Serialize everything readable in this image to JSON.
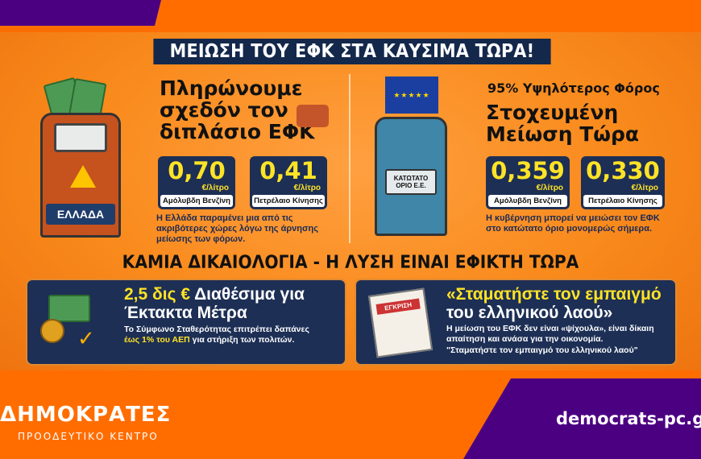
{
  "title": "ΜΕΙΩΣΗ ΤΟΥ ΕΦΚ ΣΤΑ ΚΑΥΣΙΜΑ ΤΩΡΑ!",
  "left": {
    "pump_label": "ΕΛΛΑΔΑ",
    "headline": "Πληρώνουμε σχεδόν τον διπλάσιο ΕΦΚ",
    "prices": [
      {
        "value": "0,70",
        "unit": "€/λίτρο",
        "fuel": "Αμόλυβδη Βενζίνη"
      },
      {
        "value": "0,41",
        "unit": "€/λίτρο",
        "fuel": "Πετρέλαιο Κίνησης"
      }
    ],
    "note": "Η Ελλάδα παραμένει μια από τις ακριβότερες χώρες λόγω της άρνησης μείωσης των φόρων."
  },
  "right": {
    "pump_label": "ΚΑΤΩΤΑΤΟ ΟΡΙΟ Ε.Ε.",
    "subhead": "95% Υψηλότερος Φόρος",
    "headline": "Στοχευμένη Μείωση Τώρα",
    "prices": [
      {
        "value": "0,359",
        "unit": "€/λίτρο",
        "fuel": "Αμόλυβδη Βενζίνη"
      },
      {
        "value": "0,330",
        "unit": "€/λίτρο",
        "fuel": "Πετρέλαιο Κίνησης"
      }
    ],
    "note": "Η κυβέρνηση μπορεί να μειώσει τον ΕΦΚ στο κατώτατο όριο μονομερώς σήμερα."
  },
  "middle_heading": "ΚΑΜΙΑ ΔΙΚΑΙΟΛΟΓΙΑ - Η ΛΥΣΗ ΕΙΝΑΙ ΕΦΙΚΤΗ ΤΩΡΑ",
  "box_left": {
    "title_highlight": "2,5 δις €",
    "title_rest": " Διαθέσιμα για Έκτακτα Μέτρα",
    "body_1": "Το Σύμφωνο Σταθερότητας επιτρέπει δαπάνες ",
    "body_highlight": "έως 1% του ΑΕΠ",
    "body_2": " για στήριξη των πολιτών."
  },
  "box_right": {
    "stamp": "ΕΓΚΡΙΣΗ",
    "title": "«Σταματήστε τον εμπαιγμό",
    "title_2": "του ελληνικού λαού»",
    "body": "Η μείωση του ΕΦΚ δεν είναι «ψίχουλα», είναι δίκαιη απαίτηση και ανάσα για την οικονομία.",
    "quote": "\"Σταματήστε τον εμπαιγμό του ελληνικού λαού\""
  },
  "footer": {
    "logo": "ΔΗΜΟΚΡΑΤΕΣ",
    "tagline": "ΠΡΟΟΔΕΥΤΙΚΟ ΚΕΝΤΡΟ",
    "url": "democrats-pc.gr"
  },
  "colors": {
    "orange": "#ff6d00",
    "purple": "#4b0082",
    "navy": "#1d2f55",
    "yellow": "#ffe326"
  }
}
